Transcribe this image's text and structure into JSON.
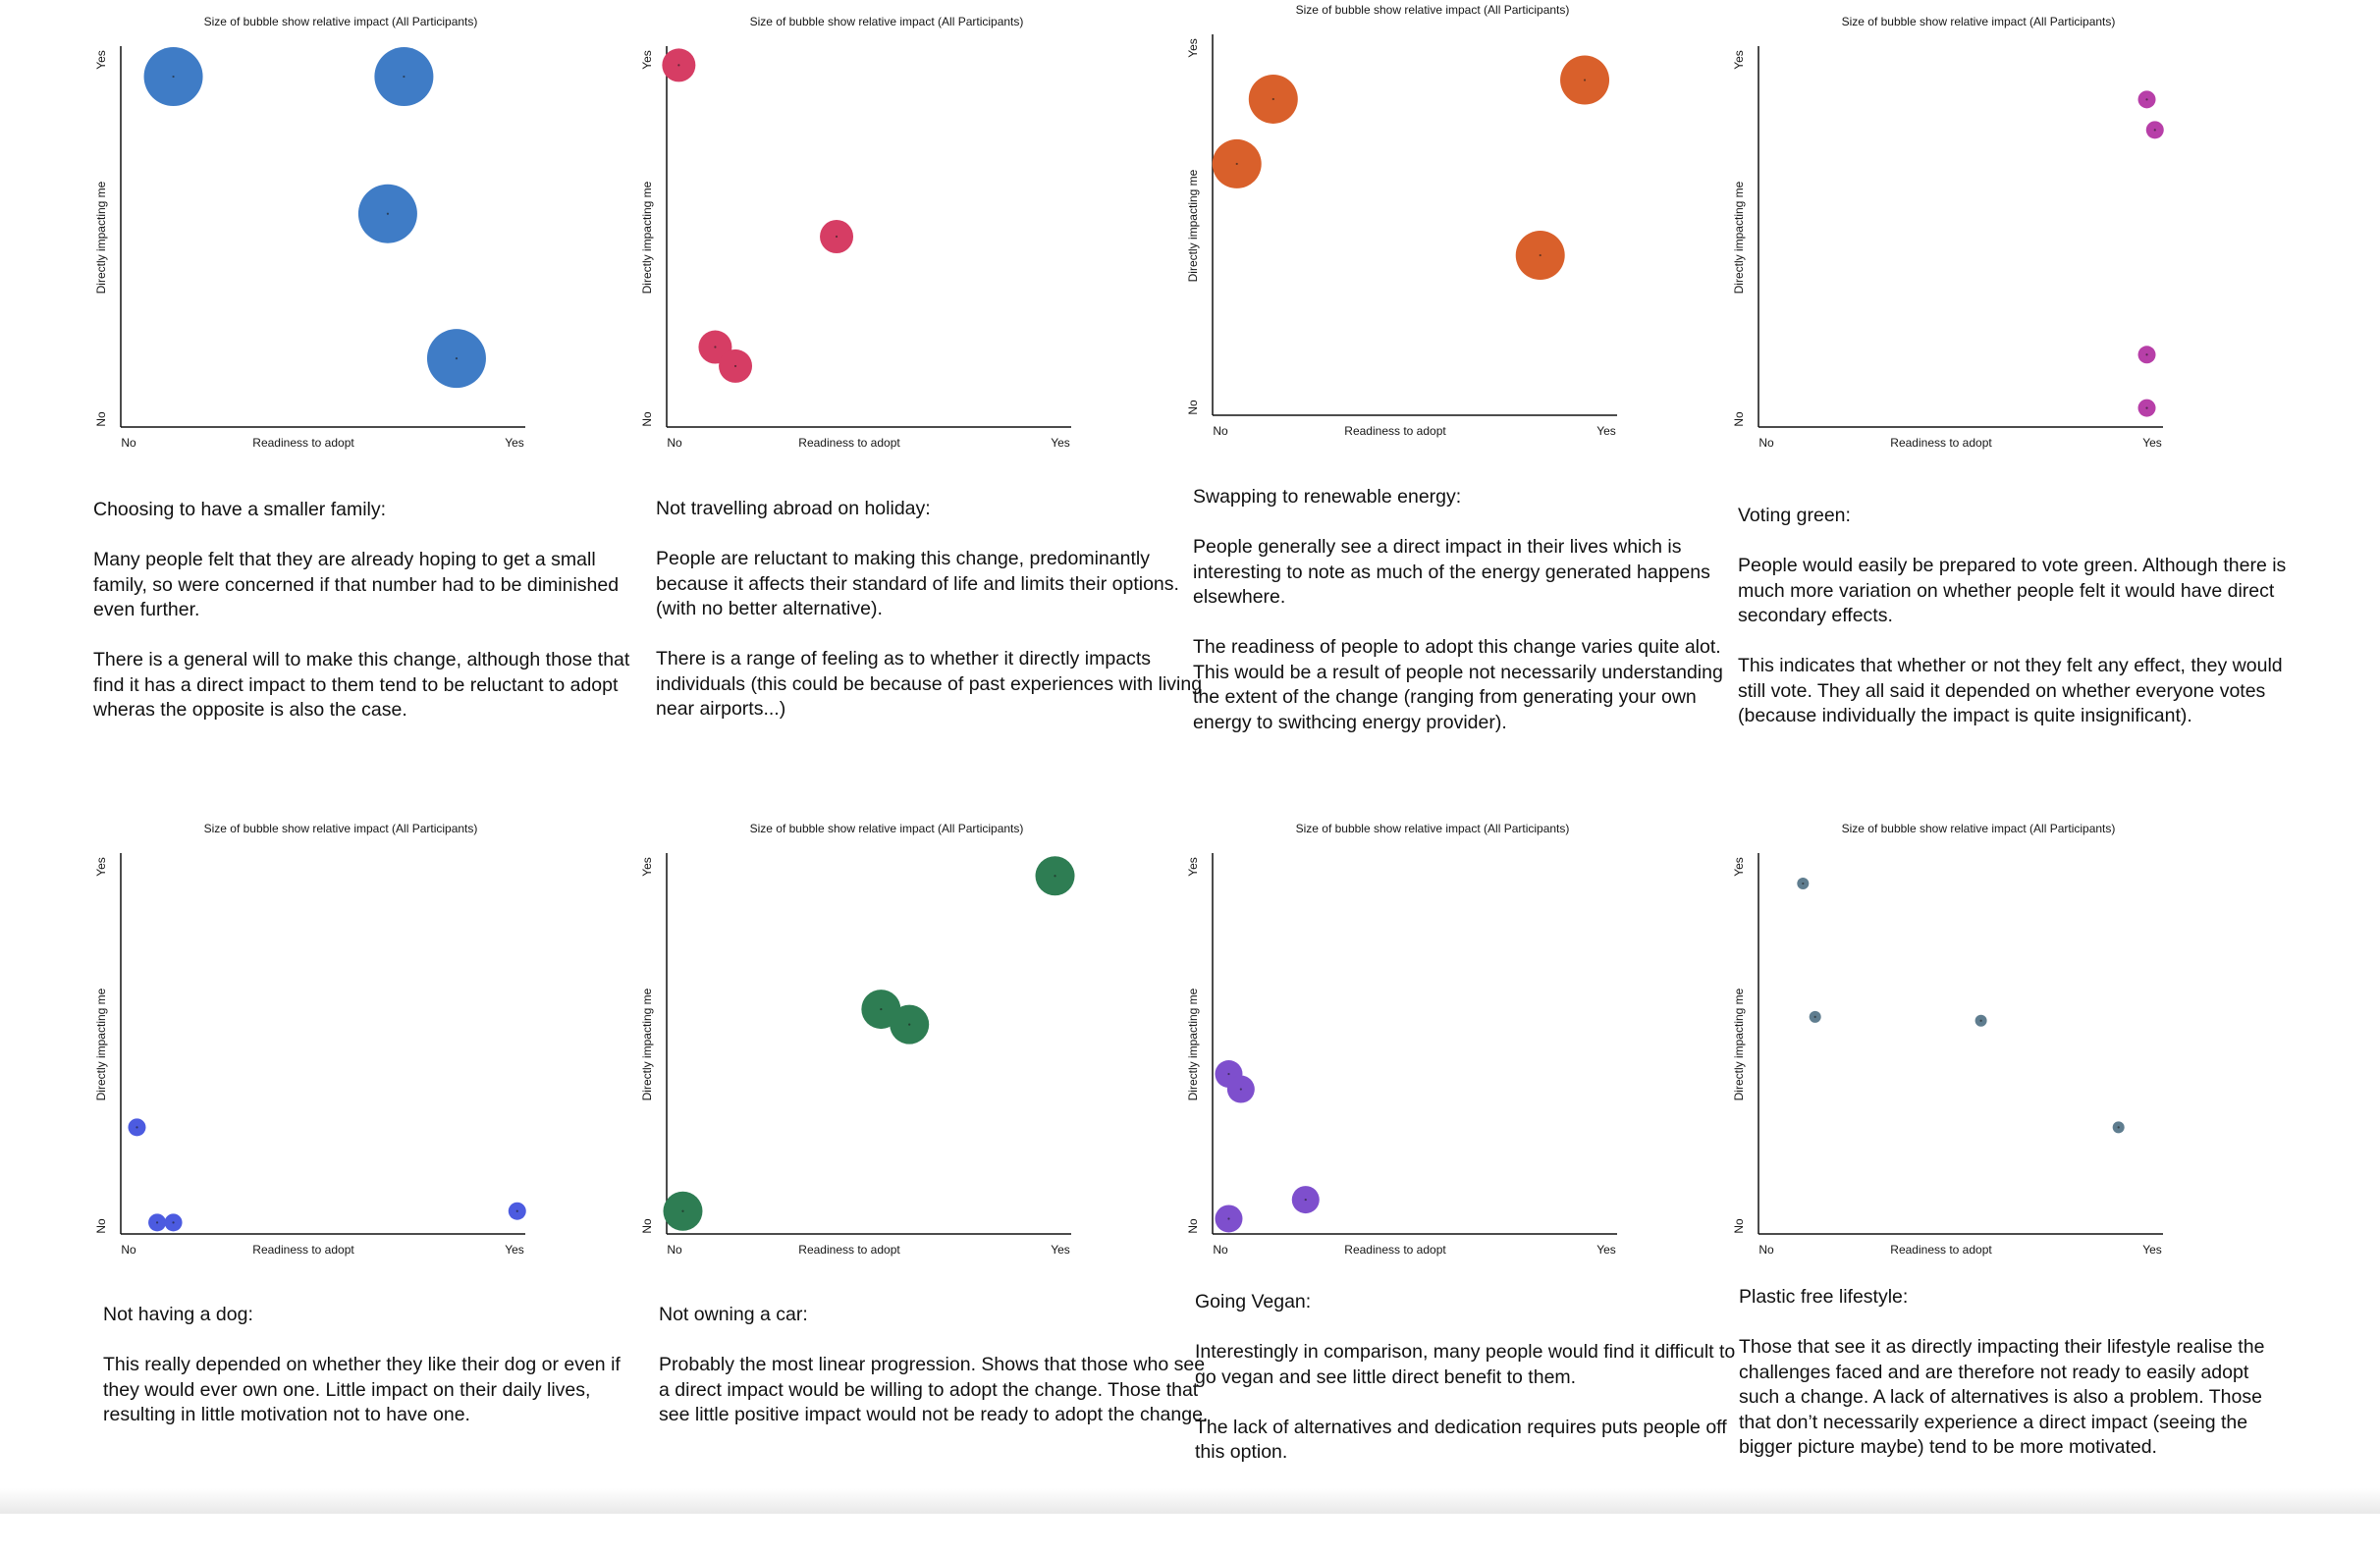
{
  "chart_data": [
    {
      "type": "scatter",
      "title": "Size of bubble show relative impact (All Participants)",
      "xlabel": "Readiness to adopt",
      "ylabel": "Directly impacting me",
      "x_ticks": [
        "No",
        "Yes"
      ],
      "y_ticks": [
        "No",
        "Yes"
      ],
      "xlim": [
        0,
        1
      ],
      "ylim": [
        0,
        1
      ],
      "color": "#3f7cc6",
      "points": [
        {
          "x": 0.13,
          "y": 0.92,
          "size": 3
        },
        {
          "x": 0.7,
          "y": 0.92,
          "size": 3
        },
        {
          "x": 0.66,
          "y": 0.56,
          "size": 3
        },
        {
          "x": 0.83,
          "y": 0.18,
          "size": 3
        }
      ],
      "description": {
        "heading": "Choosing to have a smaller family:",
        "paragraphs": [
          "Many people felt that they are already hoping to get a small family, so were concerned if that number had to be diminished even further.",
          "There is a general will to make this change, although those that find it has a direct impact to them tend to be reluctant to adopt wheras the opposite is also the case."
        ]
      }
    },
    {
      "type": "scatter",
      "title": "Size of bubble show relative impact (All Participants)",
      "xlabel": "Readiness to adopt",
      "ylabel": "Directly impacting me",
      "x_ticks": [
        "No",
        "Yes"
      ],
      "y_ticks": [
        "No",
        "Yes"
      ],
      "xlim": [
        0,
        1
      ],
      "ylim": [
        0,
        1
      ],
      "color": "#d63d64",
      "points": [
        {
          "x": 0.03,
          "y": 0.95,
          "size": 1.7
        },
        {
          "x": 0.42,
          "y": 0.5,
          "size": 1.7
        },
        {
          "x": 0.12,
          "y": 0.21,
          "size": 1.7
        },
        {
          "x": 0.17,
          "y": 0.16,
          "size": 1.7
        }
      ],
      "description": {
        "heading": "Not travelling abroad on holiday:",
        "paragraphs": [
          "People are reluctant to making this change, predominantly because it affects their standard of life and limits their options. (with no better alternative).",
          "There is a range of feeling as to whether it directly impacts individuals (this could be because of past experiences with living near airports...)"
        ]
      }
    },
    {
      "type": "scatter",
      "title": "Size of bubble show relative impact (All Participants)",
      "xlabel": "Readiness to adopt",
      "ylabel": "Directly impacting me",
      "x_ticks": [
        "No",
        "Yes"
      ],
      "y_ticks": [
        "No",
        "Yes"
      ],
      "xlim": [
        0,
        1
      ],
      "ylim": [
        0,
        1
      ],
      "color": "#d9602b",
      "points": [
        {
          "x": 0.15,
          "y": 0.83,
          "size": 2.5
        },
        {
          "x": 0.92,
          "y": 0.88,
          "size": 2.5
        },
        {
          "x": 0.06,
          "y": 0.66,
          "size": 2.5
        },
        {
          "x": 0.81,
          "y": 0.42,
          "size": 2.5
        }
      ],
      "description": {
        "heading": "Swapping to renewable energy:",
        "paragraphs": [
          "People generally see a direct impact in their lives which is interesting to note as much of the energy generated happens elsewhere.",
          "The readiness of people to adopt this change varies quite alot. This would be a result of people not necessarily understanding the extent of the change (ranging from generating your own energy to swithcing energy provider)."
        ]
      }
    },
    {
      "type": "scatter",
      "title": "Size of bubble show relative impact (All Participants)",
      "xlabel": "Readiness to adopt",
      "ylabel": "Directly impacting me",
      "x_ticks": [
        "No",
        "Yes"
      ],
      "y_ticks": [
        "No",
        "Yes"
      ],
      "xlim": [
        0,
        1
      ],
      "ylim": [
        0,
        1
      ],
      "color": "#b73fa8",
      "points": [
        {
          "x": 0.96,
          "y": 0.86,
          "size": 0.9
        },
        {
          "x": 0.98,
          "y": 0.78,
          "size": 0.9
        },
        {
          "x": 0.96,
          "y": 0.19,
          "size": 0.9
        },
        {
          "x": 0.96,
          "y": 0.05,
          "size": 0.9
        }
      ],
      "description": {
        "heading": "Voting green:",
        "paragraphs": [
          "People would easily be prepared to vote green. Although there is much more variation on whether people felt it would have direct secondary effects.",
          "This indicates that whether or not they felt any effect, they would still vote. They all said it depended on whether everyone votes (because individually the impact is quite insignificant)."
        ]
      }
    },
    {
      "type": "scatter",
      "title": "Size of bubble show relative impact (All Participants)",
      "xlabel": "Readiness to adopt",
      "ylabel": "Directly impacting me",
      "x_ticks": [
        "No",
        "Yes"
      ],
      "y_ticks": [
        "No",
        "Yes"
      ],
      "xlim": [
        0,
        1
      ],
      "ylim": [
        0,
        1
      ],
      "color": "#4c5be0",
      "points": [
        {
          "x": 0.04,
          "y": 0.28,
          "size": 0.9
        },
        {
          "x": 0.09,
          "y": 0.03,
          "size": 0.9
        },
        {
          "x": 0.13,
          "y": 0.03,
          "size": 0.9
        },
        {
          "x": 0.98,
          "y": 0.06,
          "size": 0.9
        }
      ],
      "description": {
        "heading": "Not having a dog:",
        "paragraphs": [
          "This really depended on whether they like their dog or even if they would ever own one. Little impact on their daily lives, resulting in little motivation not to have one."
        ]
      }
    },
    {
      "type": "scatter",
      "title": "Size of bubble show relative impact (All Participants)",
      "xlabel": "Readiness to adopt",
      "ylabel": "Directly impacting me",
      "x_ticks": [
        "No",
        "Yes"
      ],
      "y_ticks": [
        "No",
        "Yes"
      ],
      "xlim": [
        0,
        1
      ],
      "ylim": [
        0,
        1
      ],
      "color": "#2e7d53",
      "points": [
        {
          "x": 0.96,
          "y": 0.94,
          "size": 2
        },
        {
          "x": 0.53,
          "y": 0.59,
          "size": 2
        },
        {
          "x": 0.6,
          "y": 0.55,
          "size": 2
        },
        {
          "x": 0.04,
          "y": 0.06,
          "size": 2
        }
      ],
      "description": {
        "heading": "Not owning a car:",
        "paragraphs": [
          "Probably the most linear progression. Shows that those who see a direct impact would be willing to adopt the change. Those that see little positive impact would not be ready to adopt the change."
        ]
      }
    },
    {
      "type": "scatter",
      "title": "Size of bubble show relative impact (All Participants)",
      "xlabel": "Readiness to adopt",
      "ylabel": "Directly impacting me",
      "x_ticks": [
        "No",
        "Yes"
      ],
      "y_ticks": [
        "No",
        "Yes"
      ],
      "xlim": [
        0,
        1
      ],
      "ylim": [
        0,
        1
      ],
      "color": "#7e4fcd",
      "points": [
        {
          "x": 0.04,
          "y": 0.42,
          "size": 1.4
        },
        {
          "x": 0.07,
          "y": 0.38,
          "size": 1.4
        },
        {
          "x": 0.23,
          "y": 0.09,
          "size": 1.4
        },
        {
          "x": 0.04,
          "y": 0.04,
          "size": 1.4
        }
      ],
      "description": {
        "heading": "Going Vegan:",
        "paragraphs": [
          "Interestingly in comparison, many people would find it difficult to go vegan and see little direct benefit to them.",
          "The lack of alternatives and dedication requires puts people off this option."
        ]
      }
    },
    {
      "type": "scatter",
      "title": "Size of bubble show relative impact (All Participants)",
      "xlabel": "Readiness to adopt",
      "ylabel": "Directly impacting me",
      "x_ticks": [
        "No",
        "Yes"
      ],
      "y_ticks": [
        "No",
        "Yes"
      ],
      "xlim": [
        0,
        1
      ],
      "ylim": [
        0,
        1
      ],
      "color": "#5f7d8f",
      "points": [
        {
          "x": 0.11,
          "y": 0.92,
          "size": 0.6
        },
        {
          "x": 0.14,
          "y": 0.57,
          "size": 0.6
        },
        {
          "x": 0.55,
          "y": 0.56,
          "size": 0.6
        },
        {
          "x": 0.89,
          "y": 0.28,
          "size": 0.6
        }
      ],
      "description": {
        "heading": "Plastic free lifestyle:",
        "paragraphs": [
          "Those that see it as directly impacting their lifestyle realise the challenges faced and are therefore not ready to easily adopt such a change. A lack of alternatives is also a problem. Those that don’t necessarily experience a direct impact (seeing the bigger picture maybe) tend to be more motivated."
        ]
      }
    }
  ]
}
